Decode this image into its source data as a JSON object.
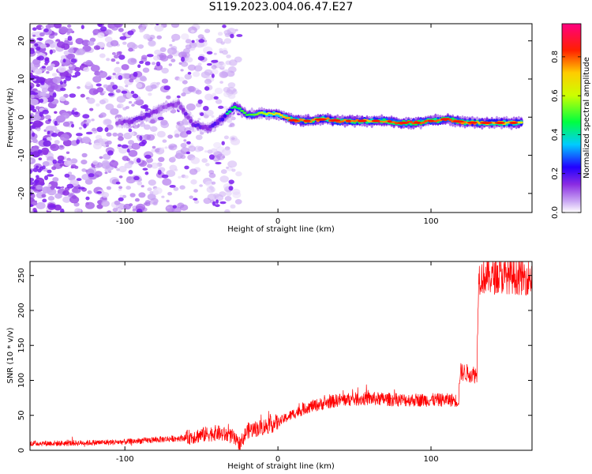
{
  "title": "S119.2023.004.06.47.E27",
  "chart_data": [
    {
      "type": "heatmap",
      "title": "",
      "xlabel": "Height of straight line (km)",
      "ylabel": "Frequency (Hz)",
      "xlim": [
        -162,
        166
      ],
      "ylim": [
        -25,
        24.5
      ],
      "xticks": [
        -100,
        0,
        100
      ],
      "yticks": [
        -20,
        -10,
        0,
        10,
        20
      ],
      "colorbar": {
        "label": "Normalized spectral amplitude",
        "range": [
          0,
          0.97
        ],
        "ticks": [
          0.0,
          0.2,
          0.4,
          0.6,
          0.8
        ],
        "colormap": [
          "#ffffff",
          "#b77cf0",
          "#7a00ff",
          "#0000ff",
          "#00c8ff",
          "#00ff00",
          "#ffff00",
          "#ff8000",
          "#ff0000",
          "#ff0090"
        ]
      },
      "ridge": {
        "x": [
          -105,
          -95,
          -85,
          -75,
          -65,
          -55,
          -45,
          -35,
          -28,
          -20,
          -10,
          0,
          10,
          20,
          30,
          40,
          50,
          60,
          70,
          80,
          90,
          100,
          110,
          120,
          130,
          140,
          150,
          160
        ],
        "y": [
          -1.5,
          -1,
          0.5,
          2.5,
          3.5,
          -2,
          -3,
          0,
          3,
          0.5,
          1,
          0.8,
          -0.8,
          -1,
          -0.5,
          -1,
          -1,
          -1,
          -1,
          -1.5,
          -1.5,
          -1,
          -0.5,
          -1.3,
          -1.5,
          -1.5,
          -1.5,
          -1.5
        ],
        "amplitude": [
          0.2,
          0.3,
          0.3,
          0.2,
          0.25,
          0.3,
          0.3,
          0.4,
          0.5,
          0.5,
          0.6,
          0.7,
          0.8,
          0.8,
          0.75,
          0.8,
          0.8,
          0.75,
          0.8,
          0.85,
          0.85,
          0.8,
          0.85,
          0.8,
          0.75,
          0.75,
          0.75,
          0.7
        ]
      },
      "noise_region": {
        "x_range": [
          -162,
          -25
        ],
        "amplitude_max": 0.15
      }
    },
    {
      "type": "line",
      "title": "",
      "xlabel": "Height of straight line (km)",
      "ylabel": "SNR (10 * v/v)",
      "xlim": [
        -162,
        166
      ],
      "ylim": [
        0,
        270
      ],
      "xticks": [
        -100,
        0,
        100
      ],
      "yticks": [
        0,
        50,
        100,
        150,
        200,
        250
      ],
      "color": "#ff0000",
      "series": [
        {
          "x": [
            -162,
            -140,
            -120,
            -100,
            -80,
            -60,
            -50,
            -40,
            -30,
            -26,
            -24,
            -20,
            -10,
            0,
            10,
            20,
            30,
            40,
            50,
            60,
            70,
            80,
            90,
            100,
            110,
            115,
            118,
            119,
            125,
            130,
            131,
            140,
            150,
            160,
            166
          ],
          "y": [
            10,
            10,
            11,
            12,
            15,
            18,
            22,
            25,
            20,
            10,
            12,
            28,
            33,
            40,
            52,
            62,
            67,
            72,
            73,
            74,
            73,
            72,
            72,
            72,
            72,
            72,
            70,
            112,
            110,
            108,
            248,
            248,
            249,
            247,
            247
          ]
        }
      ]
    }
  ]
}
